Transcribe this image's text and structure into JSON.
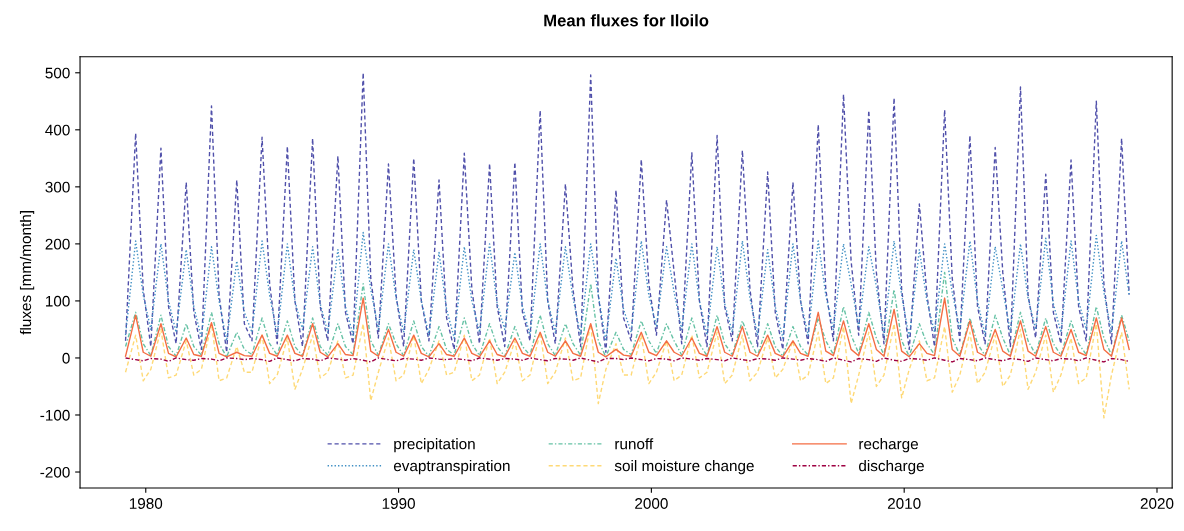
{
  "chart_data": {
    "type": "line",
    "title": "Mean fluxes for Iloilo",
    "ylabel": "fluxes [mm/month]",
    "x": [
      1979.2,
      1979.6,
      1979.9,
      1980.2,
      1980.6,
      1980.9,
      1981.2,
      1981.6,
      1981.9,
      1982.2,
      1982.6,
      1982.9,
      1983.2,
      1983.6,
      1983.9,
      1984.2,
      1984.6,
      1984.9,
      1985.2,
      1985.6,
      1985.9,
      1986.2,
      1986.6,
      1986.9,
      1987.2,
      1987.6,
      1987.9,
      1988.2,
      1988.6,
      1988.9,
      1989.2,
      1989.6,
      1989.9,
      1990.2,
      1990.6,
      1990.9,
      1991.2,
      1991.6,
      1991.9,
      1992.2,
      1992.6,
      1992.9,
      1993.2,
      1993.6,
      1993.9,
      1994.2,
      1994.6,
      1994.9,
      1995.2,
      1995.6,
      1995.9,
      1996.2,
      1996.6,
      1996.9,
      1997.2,
      1997.6,
      1997.9,
      1998.2,
      1998.6,
      1998.9,
      1999.2,
      1999.6,
      1999.9,
      2000.2,
      2000.6,
      2000.9,
      2001.2,
      2001.6,
      2001.9,
      2002.2,
      2002.6,
      2002.9,
      2003.2,
      2003.6,
      2003.9,
      2004.2,
      2004.6,
      2004.9,
      2005.2,
      2005.6,
      2005.9,
      2006.2,
      2006.6,
      2006.9,
      2007.2,
      2007.6,
      2007.9,
      2008.2,
      2008.6,
      2008.9,
      2009.2,
      2009.6,
      2009.9,
      2010.2,
      2010.6,
      2010.9,
      2011.2,
      2011.6,
      2011.9,
      2012.2,
      2012.6,
      2012.9,
      2013.2,
      2013.6,
      2013.9,
      2014.2,
      2014.6,
      2014.9,
      2015.2,
      2015.6,
      2015.9,
      2016.2,
      2016.6,
      2016.9,
      2017.2,
      2017.6,
      2017.9,
      2018.2,
      2018.6,
      2018.9
    ],
    "series": [
      {
        "name": "precipitation",
        "color": "#5050aa",
        "line_style": "dashed",
        "values": [
          30,
          394,
          120,
          20,
          368,
          90,
          25,
          308,
          80,
          15,
          442,
          110,
          10,
          312,
          60,
          30,
          387,
          130,
          25,
          371,
          100,
          20,
          385,
          90,
          30,
          354,
          80,
          25,
          500,
          140,
          35,
          340,
          110,
          20,
          350,
          100,
          30,
          312,
          70,
          15,
          359,
          120,
          25,
          341,
          90,
          20,
          343,
          80,
          30,
          434,
          100,
          25,
          305,
          120,
          20,
          496,
          110,
          10,
          294,
          70,
          30,
          348,
          130,
          40,
          277,
          150,
          25,
          360,
          100,
          20,
          390,
          90,
          30,
          364,
          120,
          20,
          326,
          80,
          15,
          308,
          100,
          25,
          409,
          120,
          30,
          462,
          170,
          40,
          434,
          150,
          25,
          456,
          120,
          15,
          270,
          110,
          20,
          435,
          140,
          30,
          390,
          90,
          25,
          369,
          150,
          20,
          475,
          110,
          35,
          322,
          80,
          25,
          347,
          90,
          30,
          450,
          130,
          25,
          385,
          111
        ]
      },
      {
        "name": "evaptranspiration",
        "color": "#3f8fc4",
        "line_style": "dotted",
        "values": [
          40,
          205,
          110,
          50,
          200,
          100,
          45,
          190,
          90,
          35,
          195,
          100,
          30,
          170,
          80,
          45,
          205,
          110,
          40,
          200,
          100,
          50,
          195,
          95,
          45,
          190,
          90,
          40,
          220,
          120,
          50,
          200,
          105,
          45,
          190,
          100,
          40,
          185,
          85,
          35,
          195,
          100,
          45,
          200,
          95,
          50,
          185,
          90,
          40,
          200,
          100,
          45,
          195,
          105,
          40,
          200,
          110,
          30,
          175,
          85,
          45,
          205,
          110,
          55,
          195,
          115,
          50,
          200,
          100,
          40,
          195,
          95,
          45,
          205,
          105,
          40,
          190,
          90,
          35,
          200,
          100,
          40,
          205,
          110,
          50,
          200,
          130,
          55,
          195,
          125,
          40,
          205,
          110,
          35,
          190,
          100,
          45,
          200,
          115,
          50,
          205,
          100,
          40,
          195,
          120,
          45,
          200,
          105,
          50,
          210,
          95,
          45,
          205,
          100,
          50,
          215,
          115,
          45,
          205,
          110
        ]
      },
      {
        "name": "runoff",
        "color": "#66c2a5",
        "line_style": "dashdot",
        "values": [
          20,
          80,
          25,
          4,
          75,
          20,
          3,
          60,
          20,
          5,
          80,
          25,
          2,
          45,
          15,
          6,
          70,
          25,
          5,
          65,
          20,
          4,
          70,
          20,
          5,
          60,
          20,
          6,
          130,
          30,
          5,
          60,
          25,
          4,
          65,
          20,
          3,
          55,
          15,
          5,
          70,
          25,
          4,
          60,
          20,
          3,
          55,
          20,
          5,
          75,
          25,
          4,
          60,
          25,
          5,
          130,
          30,
          2,
          45,
          15,
          6,
          65,
          30,
          8,
          60,
          30,
          5,
          70,
          25,
          4,
          75,
          25,
          6,
          65,
          30,
          4,
          60,
          20,
          3,
          55,
          20,
          5,
          70,
          30,
          6,
          90,
          40,
          8,
          80,
          35,
          5,
          120,
          30,
          3,
          60,
          25,
          6,
          150,
          35,
          5,
          70,
          25,
          4,
          75,
          35,
          5,
          80,
          30,
          6,
          70,
          25,
          5,
          65,
          25,
          6,
          90,
          35,
          5,
          75,
          30
        ]
      },
      {
        "name": "soil moisture change",
        "color": "#fed976",
        "line_style": "dashed",
        "values": [
          -25,
          40,
          -40,
          -20,
          50,
          -35,
          -30,
          30,
          -30,
          -20,
          60,
          -40,
          -35,
          20,
          -25,
          -25,
          40,
          -45,
          -30,
          35,
          -55,
          -20,
          40,
          -35,
          -25,
          30,
          -35,
          -30,
          60,
          -75,
          -25,
          35,
          -40,
          -30,
          40,
          -45,
          -20,
          30,
          -30,
          -25,
          40,
          -40,
          -30,
          35,
          -45,
          -25,
          30,
          -40,
          -30,
          45,
          -45,
          -25,
          35,
          -40,
          -35,
          60,
          -80,
          -20,
          25,
          -30,
          -30,
          40,
          -45,
          -25,
          30,
          -40,
          -30,
          40,
          -35,
          -25,
          45,
          -45,
          -30,
          40,
          -40,
          -25,
          35,
          -35,
          -20,
          30,
          -40,
          -30,
          45,
          -45,
          -35,
          55,
          -80,
          -30,
          45,
          -50,
          -30,
          60,
          -70,
          -20,
          30,
          -40,
          -35,
          55,
          -60,
          -30,
          45,
          -45,
          -25,
          40,
          -50,
          -30,
          50,
          -55,
          -25,
          40,
          -60,
          -30,
          35,
          -45,
          -35,
          60,
          -105,
          -30,
          45,
          -55
        ]
      },
      {
        "name": "recharge",
        "color": "#f46d43",
        "line_style": "solid",
        "values": [
          3,
          75,
          10,
          3,
          60,
          8,
          2,
          35,
          6,
          3,
          62,
          8,
          2,
          10,
          4,
          3,
          40,
          8,
          3,
          40,
          8,
          3,
          60,
          10,
          2,
          25,
          6,
          4,
          105,
          12,
          3,
          50,
          10,
          3,
          40,
          8,
          2,
          25,
          6,
          3,
          35,
          8,
          2,
          30,
          6,
          2,
          35,
          8,
          3,
          45,
          10,
          3,
          30,
          8,
          3,
          60,
          10,
          2,
          15,
          5,
          3,
          45,
          10,
          4,
          30,
          10,
          3,
          35,
          8,
          3,
          55,
          10,
          3,
          55,
          10,
          3,
          40,
          8,
          2,
          30,
          8,
          3,
          80,
          12,
          4,
          65,
          15,
          4,
          60,
          15,
          3,
          85,
          12,
          2,
          25,
          8,
          4,
          105,
          15,
          3,
          65,
          10,
          3,
          50,
          12,
          3,
          65,
          12,
          3,
          55,
          10,
          3,
          50,
          10,
          4,
          70,
          15,
          3,
          70,
          15
        ]
      },
      {
        "name": "discharge",
        "color": "#9e0142",
        "line_style": "dashdot",
        "values": [
          0,
          -3,
          -5,
          -1,
          -2,
          -6,
          0,
          -3,
          -4,
          -1,
          -2,
          -5,
          0,
          -1,
          -3,
          -1,
          -3,
          -6,
          0,
          -3,
          -5,
          -1,
          -2,
          -5,
          0,
          -2,
          -4,
          -1,
          -4,
          -7,
          0,
          -3,
          -5,
          -1,
          -2,
          -4,
          0,
          -2,
          -3,
          -1,
          -3,
          -5,
          0,
          -2,
          -4,
          -1,
          -2,
          -4,
          0,
          -3,
          -5,
          -1,
          -2,
          -4,
          0,
          -4,
          -7,
          -1,
          -1,
          -3,
          0,
          -3,
          -5,
          -1,
          -2,
          -5,
          0,
          -2,
          -4,
          -1,
          -3,
          -5,
          0,
          -3,
          -5,
          -1,
          -2,
          -4,
          0,
          -2,
          -4,
          -1,
          -3,
          -6,
          0,
          -4,
          -7,
          -1,
          -3,
          -6,
          0,
          -4,
          -6,
          -1,
          -2,
          -4,
          0,
          -4,
          -7,
          -1,
          -3,
          -5,
          0,
          -3,
          -5,
          -1,
          -3,
          -6,
          0,
          -3,
          -5,
          -1,
          -2,
          -5,
          0,
          -4,
          -7,
          -1,
          -3,
          -6
        ]
      }
    ],
    "xlim": [
      1977.4,
      2020.6
    ],
    "xticks": [
      1980,
      1990,
      2000,
      2010,
      2020
    ],
    "ylim": [
      -228,
      528
    ],
    "yticks": [
      -200,
      -100,
      0,
      100,
      200,
      300,
      400,
      500
    ],
    "legend": "bottom",
    "grid": false
  }
}
